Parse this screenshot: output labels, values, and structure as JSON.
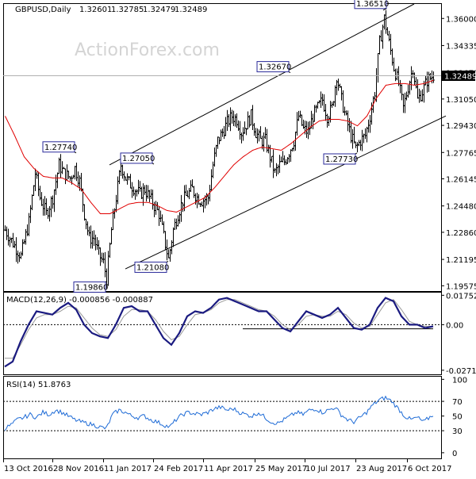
{
  "chart_data": {
    "type": "candlestick",
    "header": {
      "symbol_tf": "GBPUSD,Daily",
      "open": "1.32601",
      "high": "1.32785",
      "low": "1.32479",
      "close": "1.32489"
    },
    "watermark": "ActionForex.com",
    "price_axis": {
      "ticks": [
        "1.36000",
        "1.34335",
        "1.32670",
        "1.31050",
        "1.29430",
        "1.27765",
        "1.26145",
        "1.24480",
        "1.22860",
        "1.21195",
        "1.19575"
      ],
      "ylim": [
        1.1925,
        1.3689
      ]
    },
    "current_price": "1.32489",
    "x_axis_labels": [
      "13 Oct 2016",
      "28 Nov 2016",
      "11 Jan 2017",
      "24 Feb 2017",
      "11 Apr 2017",
      "25 May 2017",
      "10 Jul 2017",
      "23 Aug 2017",
      "6 Oct 2017"
    ],
    "annotations": [
      {
        "label": "1.36510",
        "x": 238.5,
        "price": 1.3651
      },
      {
        "label": "1.32670",
        "x": 180,
        "price": 1.3267
      },
      {
        "label": "1.27740",
        "x": 45,
        "price": 1.2774
      },
      {
        "label": "1.27050",
        "x": 94,
        "price": 1.2705
      },
      {
        "label": "1.27730",
        "x": 222,
        "price": 1.2773
      },
      {
        "label": "1.21080",
        "x": 103,
        "price": 1.2108
      },
      {
        "label": "1.19860",
        "x": 64.5,
        "price": 1.1986
      }
    ],
    "channel": [
      {
        "name": "upper",
        "points": [
          [
            66,
            1.27
          ],
          [
            258,
            1.3689
          ]
        ]
      },
      {
        "name": "lower",
        "points": [
          [
            76,
            1.2061
          ],
          [
            278,
            1.3001
          ]
        ]
      }
    ],
    "price_waypoints": [
      [
        0,
        1.23
      ],
      [
        5,
        1.222
      ],
      [
        10,
        1.214
      ],
      [
        15,
        1.235
      ],
      [
        19,
        1.265
      ],
      [
        22,
        1.25
      ],
      [
        26,
        1.24
      ],
      [
        30,
        1.25
      ],
      [
        34,
        1.27
      ],
      [
        37,
        1.265
      ],
      [
        41,
        1.262
      ],
      [
        44,
        1.268
      ],
      [
        47,
        1.26
      ],
      [
        50,
        1.24
      ],
      [
        53,
        1.225
      ],
      [
        56,
        1.225
      ],
      [
        59,
        1.215
      ],
      [
        62,
        1.21
      ],
      [
        64,
        1.2
      ],
      [
        67,
        1.23
      ],
      [
        70,
        1.25
      ],
      [
        73,
        1.27
      ],
      [
        76,
        1.262
      ],
      [
        79,
        1.258
      ],
      [
        82,
        1.255
      ],
      [
        85,
        1.252
      ],
      [
        88,
        1.255
      ],
      [
        91,
        1.25
      ],
      [
        94,
        1.245
      ],
      [
        97,
        1.24
      ],
      [
        100,
        1.226
      ],
      [
        103,
        1.212
      ],
      [
        106,
        1.23
      ],
      [
        109,
        1.24
      ],
      [
        112,
        1.248
      ],
      [
        115,
        1.252
      ],
      [
        118,
        1.255
      ],
      [
        121,
        1.25
      ],
      [
        124,
        1.248
      ],
      [
        128,
        1.25
      ],
      [
        131,
        1.27
      ],
      [
        134,
        1.285
      ],
      [
        137,
        1.29
      ],
      [
        140,
        1.296
      ],
      [
        143,
        1.3
      ],
      [
        146,
        1.298
      ],
      [
        149,
        1.29
      ],
      [
        152,
        1.295
      ],
      [
        155,
        1.3
      ],
      [
        158,
        1.29
      ],
      [
        161,
        1.285
      ],
      [
        164,
        1.285
      ],
      [
        167,
        1.275
      ],
      [
        170,
        1.265
      ],
      [
        173,
        1.27
      ],
      [
        176,
        1.272
      ],
      [
        179,
        1.278
      ],
      [
        182,
        1.285
      ],
      [
        185,
        1.3
      ],
      [
        188,
        1.292
      ],
      [
        191,
        1.29
      ],
      [
        194,
        1.3
      ],
      [
        197,
        1.305
      ],
      [
        200,
        1.31
      ],
      [
        203,
        1.3
      ],
      [
        206,
        1.305
      ],
      [
        209,
        1.325
      ],
      [
        212,
        1.31
      ],
      [
        215,
        1.298
      ],
      [
        218,
        1.288
      ],
      [
        221,
        1.28
      ],
      [
        224,
        1.285
      ],
      [
        227,
        1.288
      ],
      [
        230,
        1.3
      ],
      [
        233,
        1.315
      ],
      [
        236,
        1.345
      ],
      [
        239,
        1.36
      ],
      [
        242,
        1.345
      ],
      [
        245,
        1.33
      ],
      [
        248,
        1.32
      ],
      [
        251,
        1.305
      ],
      [
        254,
        1.318
      ],
      [
        257,
        1.33
      ],
      [
        260,
        1.31
      ],
      [
        263,
        1.315
      ],
      [
        266,
        1.322
      ],
      [
        270,
        1.325
      ]
    ],
    "moving_average": [
      [
        0,
        1.3
      ],
      [
        6,
        1.288
      ],
      [
        12,
        1.275
      ],
      [
        18,
        1.268
      ],
      [
        24,
        1.263
      ],
      [
        30,
        1.262
      ],
      [
        36,
        1.262
      ],
      [
        42,
        1.259
      ],
      [
        48,
        1.255
      ],
      [
        54,
        1.247
      ],
      [
        60,
        1.24
      ],
      [
        66,
        1.24
      ],
      [
        72,
        1.243
      ],
      [
        78,
        1.246
      ],
      [
        84,
        1.247
      ],
      [
        90,
        1.247
      ],
      [
        96,
        1.245
      ],
      [
        102,
        1.242
      ],
      [
        108,
        1.241
      ],
      [
        114,
        1.244
      ],
      [
        120,
        1.247
      ],
      [
        126,
        1.25
      ],
      [
        132,
        1.256
      ],
      [
        138,
        1.263
      ],
      [
        144,
        1.27
      ],
      [
        150,
        1.275
      ],
      [
        156,
        1.279
      ],
      [
        162,
        1.281
      ],
      [
        168,
        1.28
      ],
      [
        174,
        1.279
      ],
      [
        180,
        1.283
      ],
      [
        186,
        1.288
      ],
      [
        192,
        1.293
      ],
      [
        198,
        1.297
      ],
      [
        204,
        1.298
      ],
      [
        210,
        1.298
      ],
      [
        216,
        1.297
      ],
      [
        222,
        1.294
      ],
      [
        228,
        1.3
      ],
      [
        234,
        1.311
      ],
      [
        240,
        1.319
      ],
      [
        246,
        1.32
      ],
      [
        252,
        1.32
      ],
      [
        258,
        1.319
      ],
      [
        264,
        1.32
      ],
      [
        270,
        1.322
      ]
    ],
    "macd": {
      "label": "MACD(12,26,9) -0.000856 -0.000887",
      "ticks": [
        "0.017521",
        "0.00",
        "-0.027169"
      ],
      "ylim": [
        -0.0296,
        0.0191
      ],
      "reference_level": -0.0025,
      "macd_line": [
        [
          0,
          -0.025
        ],
        [
          5,
          -0.022
        ],
        [
          10,
          -0.01
        ],
        [
          15,
          0.0
        ],
        [
          20,
          0.008
        ],
        [
          25,
          0.007
        ],
        [
          30,
          0.006
        ],
        [
          35,
          0.01
        ],
        [
          40,
          0.013
        ],
        [
          45,
          0.009
        ],
        [
          50,
          0.0
        ],
        [
          55,
          -0.005
        ],
        [
          60,
          -0.007
        ],
        [
          65,
          -0.008
        ],
        [
          70,
          0.0
        ],
        [
          75,
          0.01
        ],
        [
          80,
          0.011
        ],
        [
          85,
          0.008
        ],
        [
          90,
          0.008
        ],
        [
          95,
          0.0
        ],
        [
          100,
          -0.008
        ],
        [
          105,
          -0.012
        ],
        [
          110,
          -0.005
        ],
        [
          115,
          0.005
        ],
        [
          120,
          0.008
        ],
        [
          125,
          0.007
        ],
        [
          130,
          0.01
        ],
        [
          135,
          0.015
        ],
        [
          140,
          0.016
        ],
        [
          145,
          0.014
        ],
        [
          150,
          0.012
        ],
        [
          155,
          0.01
        ],
        [
          160,
          0.008
        ],
        [
          165,
          0.008
        ],
        [
          170,
          0.003
        ],
        [
          175,
          -0.002
        ],
        [
          180,
          -0.004
        ],
        [
          185,
          0.002
        ],
        [
          190,
          0.008
        ],
        [
          195,
          0.006
        ],
        [
          200,
          0.004
        ],
        [
          205,
          0.006
        ],
        [
          210,
          0.01
        ],
        [
          215,
          0.004
        ],
        [
          220,
          -0.002
        ],
        [
          225,
          -0.003
        ],
        [
          230,
          0.0
        ],
        [
          235,
          0.01
        ],
        [
          240,
          0.016
        ],
        [
          245,
          0.014
        ],
        [
          250,
          0.005
        ],
        [
          255,
          0.0
        ],
        [
          260,
          0.0
        ],
        [
          265,
          -0.002
        ],
        [
          270,
          -0.001
        ]
      ],
      "signal_line": [
        [
          0,
          -0.02
        ],
        [
          5,
          -0.02
        ],
        [
          10,
          -0.012
        ],
        [
          15,
          -0.003
        ],
        [
          20,
          0.004
        ],
        [
          25,
          0.006
        ],
        [
          30,
          0.006
        ],
        [
          35,
          0.008
        ],
        [
          40,
          0.011
        ],
        [
          45,
          0.01
        ],
        [
          50,
          0.004
        ],
        [
          55,
          -0.002
        ],
        [
          60,
          -0.006
        ],
        [
          65,
          -0.007
        ],
        [
          70,
          -0.003
        ],
        [
          75,
          0.005
        ],
        [
          80,
          0.009
        ],
        [
          85,
          0.009
        ],
        [
          90,
          0.008
        ],
        [
          95,
          0.003
        ],
        [
          100,
          -0.004
        ],
        [
          105,
          -0.009
        ],
        [
          110,
          -0.007
        ],
        [
          115,
          0.0
        ],
        [
          120,
          0.006
        ],
        [
          125,
          0.007
        ],
        [
          130,
          0.009
        ],
        [
          135,
          0.013
        ],
        [
          140,
          0.015
        ],
        [
          145,
          0.015
        ],
        [
          150,
          0.013
        ],
        [
          155,
          0.011
        ],
        [
          160,
          0.009
        ],
        [
          165,
          0.008
        ],
        [
          170,
          0.005
        ],
        [
          175,
          0.0
        ],
        [
          180,
          -0.003
        ],
        [
          185,
          0.0
        ],
        [
          190,
          0.005
        ],
        [
          195,
          0.006
        ],
        [
          200,
          0.005
        ],
        [
          205,
          0.005
        ],
        [
          210,
          0.008
        ],
        [
          215,
          0.006
        ],
        [
          220,
          0.001
        ],
        [
          225,
          -0.002
        ],
        [
          230,
          -0.001
        ],
        [
          235,
          0.006
        ],
        [
          240,
          0.013
        ],
        [
          245,
          0.015
        ],
        [
          250,
          0.009
        ],
        [
          255,
          0.002
        ],
        [
          260,
          0.0
        ],
        [
          265,
          -0.001
        ],
        [
          270,
          -0.001
        ]
      ]
    },
    "rsi": {
      "label": "RSI(14) 51.8763",
      "ticks": [
        "100",
        "70",
        "50",
        "30",
        "0"
      ],
      "ylim": [
        -7.7,
        103.6
      ],
      "levels": [
        70,
        30
      ],
      "values": [
        [
          0,
          33
        ],
        [
          4,
          38
        ],
        [
          8,
          45
        ],
        [
          12,
          48
        ],
        [
          16,
          52
        ],
        [
          20,
          48
        ],
        [
          24,
          55
        ],
        [
          28,
          52
        ],
        [
          32,
          58
        ],
        [
          36,
          55
        ],
        [
          40,
          50
        ],
        [
          44,
          45
        ],
        [
          48,
          42
        ],
        [
          52,
          40
        ],
        [
          56,
          38
        ],
        [
          60,
          35
        ],
        [
          64,
          33
        ],
        [
          68,
          52
        ],
        [
          72,
          58
        ],
        [
          76,
          55
        ],
        [
          80,
          50
        ],
        [
          84,
          48
        ],
        [
          88,
          50
        ],
        [
          92,
          45
        ],
        [
          96,
          42
        ],
        [
          100,
          38
        ],
        [
          104,
          35
        ],
        [
          108,
          45
        ],
        [
          112,
          52
        ],
        [
          116,
          55
        ],
        [
          120,
          53
        ],
        [
          124,
          52
        ],
        [
          128,
          55
        ],
        [
          132,
          60
        ],
        [
          136,
          62
        ],
        [
          140,
          58
        ],
        [
          144,
          60
        ],
        [
          148,
          55
        ],
        [
          152,
          52
        ],
        [
          156,
          50
        ],
        [
          160,
          55
        ],
        [
          164,
          48
        ],
        [
          168,
          42
        ],
        [
          172,
          40
        ],
        [
          176,
          45
        ],
        [
          180,
          50
        ],
        [
          184,
          55
        ],
        [
          188,
          52
        ],
        [
          192,
          58
        ],
        [
          196,
          60
        ],
        [
          200,
          55
        ],
        [
          204,
          58
        ],
        [
          208,
          62
        ],
        [
          212,
          52
        ],
        [
          216,
          45
        ],
        [
          220,
          42
        ],
        [
          224,
          48
        ],
        [
          228,
          55
        ],
        [
          232,
          65
        ],
        [
          236,
          72
        ],
        [
          240,
          75
        ],
        [
          244,
          70
        ],
        [
          248,
          60
        ],
        [
          252,
          50
        ],
        [
          256,
          45
        ],
        [
          260,
          48
        ],
        [
          264,
          42
        ],
        [
          270,
          52
        ]
      ]
    }
  }
}
